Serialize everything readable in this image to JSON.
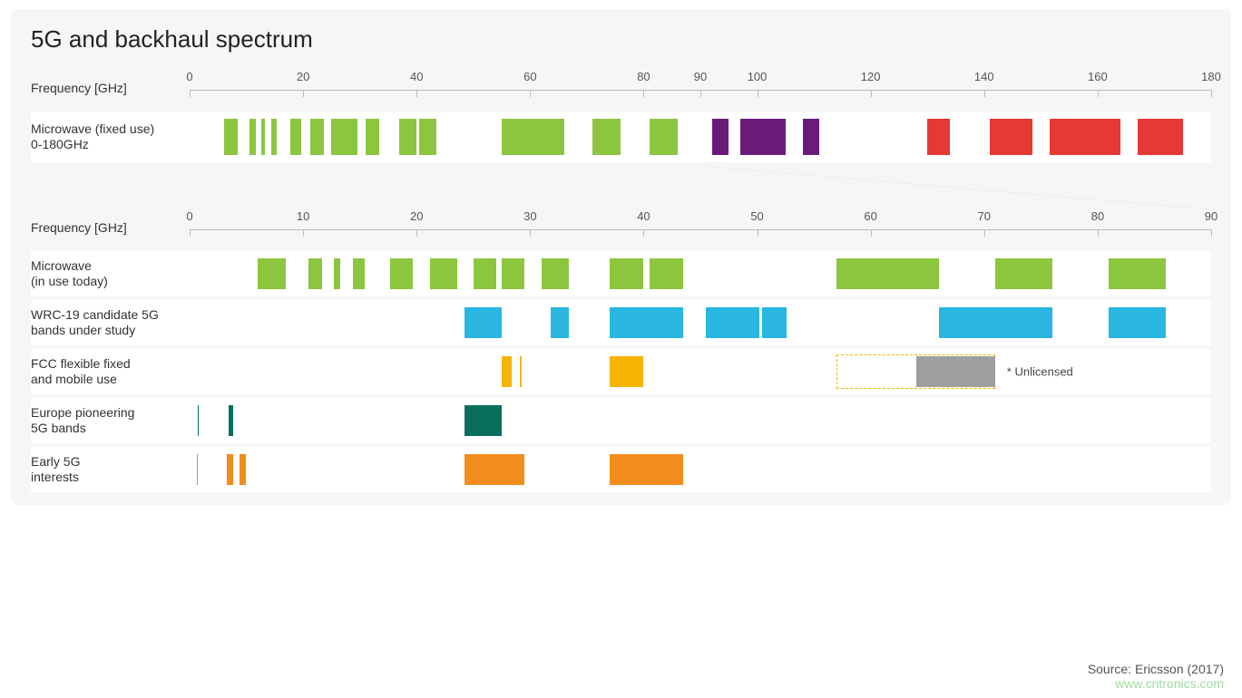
{
  "title": "5G and backhaul spectrum",
  "footer": {
    "source": "Source: Ericsson (2017)",
    "watermark": "www.cntronics.com"
  },
  "colors": {
    "green": "#8cc63f",
    "purple": "#6a1b7a",
    "red": "#e53935",
    "cyan": "#29b6e0",
    "yellow": "#f5b400",
    "teal": "#0a6e5f",
    "orange": "#f28c1c",
    "gray": "#9e9e9e",
    "dashed": "#f5b400",
    "axis": "#bbbbbb",
    "row_bg": "#ffffff"
  },
  "top_axis": {
    "label": "Frequency [GHz]",
    "min": 0,
    "max": 180,
    "step": 20,
    "ticks": [
      0,
      20,
      40,
      60,
      80,
      90,
      100,
      120,
      140,
      160,
      180
    ]
  },
  "top_band_row": {
    "label1": "Microwave (fixed use)",
    "label2": "0-180GHz",
    "bars": [
      {
        "from": 6,
        "to": 8.5,
        "color": "green"
      },
      {
        "from": 10.5,
        "to": 11.7,
        "color": "green"
      },
      {
        "from": 12.7,
        "to": 13.3,
        "color": "green"
      },
      {
        "from": 14.4,
        "to": 15.4,
        "color": "green"
      },
      {
        "from": 17.7,
        "to": 19.7,
        "color": "green"
      },
      {
        "from": 21.2,
        "to": 23.6,
        "color": "green"
      },
      {
        "from": 25,
        "to": 29.5,
        "color": "green"
      },
      {
        "from": 31,
        "to": 33.4,
        "color": "green"
      },
      {
        "from": 37,
        "to": 40,
        "color": "green"
      },
      {
        "from": 40.5,
        "to": 43.5,
        "color": "green"
      },
      {
        "from": 55,
        "to": 66,
        "color": "green"
      },
      {
        "from": 71,
        "to": 76,
        "color": "green"
      },
      {
        "from": 81,
        "to": 86,
        "color": "green"
      },
      {
        "from": 92,
        "to": 95,
        "color": "purple"
      },
      {
        "from": 97,
        "to": 105,
        "color": "purple"
      },
      {
        "from": 108,
        "to": 111,
        "color": "purple"
      },
      {
        "from": 130,
        "to": 134,
        "color": "red"
      },
      {
        "from": 141,
        "to": 148.5,
        "color": "red"
      },
      {
        "from": 151.5,
        "to": 164,
        "color": "red"
      },
      {
        "from": 167,
        "to": 175,
        "color": "red"
      }
    ]
  },
  "zoom": {
    "top_from": 0,
    "top_to": 90,
    "bottom_from": 0,
    "bottom_to": 90
  },
  "bottom_axis": {
    "label": "Frequency [GHz]",
    "min": 0,
    "max": 90,
    "step": 10,
    "ticks": [
      0,
      10,
      20,
      30,
      40,
      50,
      60,
      70,
      80,
      90
    ]
  },
  "rows": [
    {
      "id": "microwave-today",
      "label1": "Microwave",
      "label2": "(in use today)",
      "color": "green",
      "bars": [
        {
          "from": 6,
          "to": 8.5
        },
        {
          "from": 10.5,
          "to": 11.7
        },
        {
          "from": 12.7,
          "to": 13.3
        },
        {
          "from": 14.4,
          "to": 15.4
        },
        {
          "from": 17.7,
          "to": 19.7
        },
        {
          "from": 21.2,
          "to": 23.6
        },
        {
          "from": 25,
          "to": 27
        },
        {
          "from": 27.5,
          "to": 29.5
        },
        {
          "from": 31,
          "to": 33.4
        },
        {
          "from": 37,
          "to": 40
        },
        {
          "from": 40.5,
          "to": 43.5
        },
        {
          "from": 57,
          "to": 66
        },
        {
          "from": 71,
          "to": 76
        },
        {
          "from": 81,
          "to": 86
        }
      ]
    },
    {
      "id": "wrc19",
      "label1": "WRC-19 candidate 5G",
      "label2": "bands under study",
      "color": "cyan",
      "bars": [
        {
          "from": 24.25,
          "to": 27.5
        },
        {
          "from": 31.8,
          "to": 33.4
        },
        {
          "from": 37,
          "to": 43.5
        },
        {
          "from": 45.5,
          "to": 50.2
        },
        {
          "from": 50.4,
          "to": 52.6
        },
        {
          "from": 66,
          "to": 76
        },
        {
          "from": 81,
          "to": 86
        }
      ]
    },
    {
      "id": "fcc",
      "label1": "FCC flexible fixed",
      "label2": "and mobile use",
      "color": "yellow",
      "bars": [
        {
          "from": 27.5,
          "to": 28.35
        },
        {
          "from": 29.1,
          "to": 29.25
        },
        {
          "from": 37,
          "to": 40
        }
      ],
      "dashed": {
        "from": 57,
        "to": 71
      },
      "graybar": {
        "from": 64,
        "to": 71
      },
      "note": "* Unlicensed",
      "note_at": 72
    },
    {
      "id": "europe",
      "label1": "Europe pioneering",
      "label2": "5G bands",
      "color": "teal",
      "bars": [
        {
          "from": 0.7,
          "to": 0.8
        },
        {
          "from": 3.4,
          "to": 3.8
        },
        {
          "from": 24.25,
          "to": 27.5
        }
      ]
    },
    {
      "id": "early5g",
      "label1": "Early 5G",
      "label2": "interests",
      "color": "orange",
      "bars": [
        {
          "from": 0.6,
          "to": 0.7
        },
        {
          "from": 3.3,
          "to": 3.8
        },
        {
          "from": 4.4,
          "to": 4.99
        },
        {
          "from": 24.25,
          "to": 29.5
        },
        {
          "from": 37,
          "to": 43.5
        }
      ]
    }
  ]
}
